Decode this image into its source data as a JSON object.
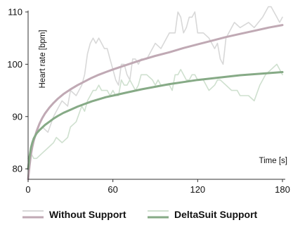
{
  "chart_data": {
    "type": "line",
    "xlabel": "Time [s]",
    "ylabel": "Heart rate  [bpm]",
    "xlim": [
      0,
      180
    ],
    "ylim": [
      78,
      110
    ],
    "x_ticks": [
      0,
      60,
      120,
      180
    ],
    "y_ticks": [
      80,
      90,
      100,
      110
    ],
    "grid": false,
    "legend_position": "bottom",
    "series": [
      {
        "name": "Without Support",
        "role": "raw",
        "color": "#d8d8d8",
        "x": [
          0,
          2,
          4,
          6,
          10,
          14,
          18,
          20,
          24,
          28,
          30,
          34,
          38,
          40,
          42,
          44,
          46,
          48,
          50,
          52,
          54,
          56,
          58,
          60,
          62,
          64,
          66,
          68,
          70,
          72,
          74,
          76,
          78,
          80,
          84,
          90,
          94,
          100,
          104,
          106,
          108,
          110,
          112,
          114,
          116,
          118,
          120,
          124,
          128,
          130,
          132,
          134,
          136,
          138,
          140,
          142,
          144,
          146,
          150,
          156,
          160,
          166,
          170,
          172,
          174,
          176,
          178,
          180
        ],
        "y": [
          80,
          84,
          86,
          87,
          88,
          87,
          90,
          91,
          93,
          92,
          95,
          94,
          96,
          98,
          102,
          104,
          105,
          104,
          105,
          104,
          103,
          103,
          101,
          99,
          97,
          96,
          100,
          100,
          98,
          97,
          101,
          101,
          100,
          101,
          101,
          104,
          103,
          106,
          106,
          110,
          109,
          106,
          107,
          109,
          109,
          110,
          106,
          106,
          105,
          104,
          103,
          104,
          101,
          100,
          105,
          106,
          107,
          108,
          107,
          108,
          107,
          109,
          111,
          111,
          110,
          109,
          108,
          109
        ]
      },
      {
        "name": "DeltaSuit Support",
        "role": "raw",
        "color": "#cfe0cf",
        "x": [
          0,
          2,
          4,
          6,
          10,
          14,
          18,
          20,
          24,
          28,
          30,
          34,
          38,
          40,
          42,
          44,
          46,
          48,
          50,
          52,
          54,
          56,
          58,
          60,
          62,
          64,
          66,
          68,
          70,
          72,
          74,
          76,
          78,
          80,
          84,
          88,
          90,
          92,
          94,
          98,
          100,
          102,
          104,
          106,
          108,
          110,
          112,
          114,
          116,
          118,
          120,
          124,
          128,
          132,
          134,
          136,
          140,
          144,
          148,
          150,
          156,
          160,
          164,
          168,
          172,
          176,
          178,
          180
        ],
        "y": [
          82,
          83,
          82,
          82,
          83,
          84,
          85,
          86,
          85,
          86,
          88,
          89,
          92,
          91,
          93,
          94,
          95,
          95,
          96,
          95,
          95,
          95,
          94,
          95,
          94,
          94,
          97,
          96,
          96,
          97,
          96,
          95,
          96,
          98,
          98,
          97,
          96,
          97,
          96,
          96,
          96,
          95,
          98,
          98,
          99,
          98,
          97,
          97,
          98,
          98,
          97,
          97,
          95,
          96,
          97,
          97,
          96,
          95,
          95,
          94,
          94,
          93,
          96,
          98,
          99,
          100,
          99,
          98
        ]
      },
      {
        "name": "Without Support",
        "role": "fit",
        "color": "#c0a9b4",
        "x": [
          0,
          1,
          2,
          3,
          4,
          6,
          8,
          10,
          12,
          15,
          18,
          21,
          25,
          30,
          35,
          40,
          45,
          50,
          55,
          60,
          70,
          80,
          90,
          100,
          110,
          120,
          130,
          140,
          150,
          160,
          170,
          180
        ],
        "y": [
          78,
          80.5,
          82.7,
          84.2,
          85.4,
          87.2,
          88.6,
          89.7,
          90.6,
          91.7,
          92.6,
          93.4,
          94.3,
          95.2,
          96.0,
          96.7,
          97.4,
          98.0,
          98.5,
          99.0,
          99.9,
          100.8,
          101.6,
          102.3,
          103.1,
          103.8,
          104.5,
          105.2,
          105.8,
          106.4,
          107.0,
          107.5
        ]
      },
      {
        "name": "DeltaSuit Support",
        "role": "fit",
        "color": "#86aa86",
        "x": [
          0,
          1,
          2,
          3,
          4,
          6,
          8,
          10,
          12,
          15,
          18,
          21,
          25,
          30,
          35,
          40,
          45,
          50,
          55,
          60,
          70,
          80,
          90,
          100,
          110,
          120,
          130,
          140,
          150,
          160,
          170,
          180
        ],
        "y": [
          80,
          82.3,
          84.0,
          85.0,
          85.8,
          86.8,
          87.4,
          87.9,
          88.4,
          89.0,
          89.6,
          90.1,
          90.7,
          91.3,
          91.9,
          92.4,
          92.9,
          93.3,
          93.7,
          94.0,
          94.6,
          95.2,
          95.7,
          96.2,
          96.6,
          97.0,
          97.3,
          97.6,
          97.9,
          98.1,
          98.3,
          98.5
        ]
      }
    ],
    "legend": [
      {
        "label": "Without Support",
        "raw_color": "#d8d8d8",
        "fit_color": "#c0a9b4"
      },
      {
        "label": "DeltaSuit Support",
        "raw_color": "#cfe0cf",
        "fit_color": "#86aa86"
      }
    ],
    "axis_color": "#333333"
  }
}
